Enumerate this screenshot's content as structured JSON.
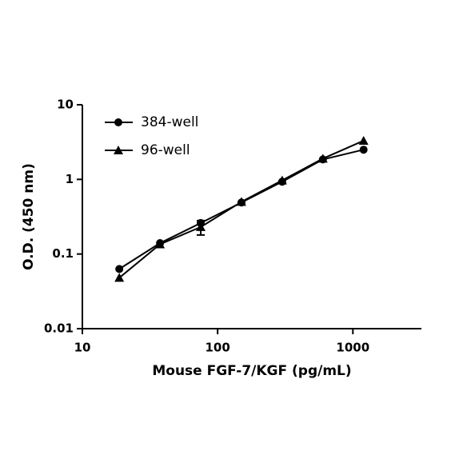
{
  "chart_data": {
    "type": "line",
    "x_label": "Mouse FGF-7/KGF (pg/mL)",
    "y_label": "O.D. (450 nm)",
    "x": [
      18.75,
      37.5,
      75,
      150,
      300,
      600,
      1200
    ],
    "series": [
      {
        "name": "384-well",
        "color": "#000000",
        "marker": "circle",
        "values": [
          0.063,
          0.14,
          0.26,
          0.49,
          0.93,
          1.85,
          2.5
        ]
      },
      {
        "name": "96-well",
        "color": "#000000",
        "marker": "triangle",
        "values": [
          0.048,
          0.135,
          0.23,
          0.5,
          0.97,
          1.9,
          3.3
        ],
        "errors": [
          null,
          null,
          0.05,
          null,
          null,
          null,
          null
        ]
      }
    ],
    "xlim": [
      10,
      3000
    ],
    "xticks": [
      10,
      100,
      1000
    ],
    "xscale": "log",
    "ylim": [
      0.01,
      10
    ],
    "yticks": [
      0.01,
      0.1,
      1,
      10
    ],
    "yscale": "log",
    "legend": "upper left"
  }
}
